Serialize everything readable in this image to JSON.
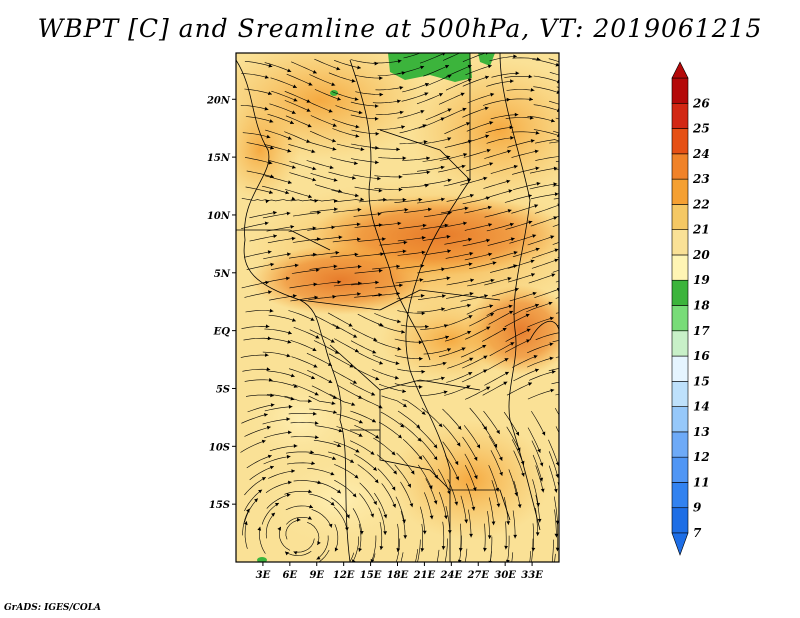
{
  "title": "WBPT [C] and Sreamline at 500hPa, VT: 2019061215",
  "credit": "GrADS: IGES/COLA",
  "map": {
    "lon_range": [
      0,
      36
    ],
    "lat_range": [
      -20,
      24
    ],
    "lat_ticks": [
      "20N",
      "15N",
      "10N",
      "5N",
      "EQ",
      "5S",
      "10S",
      "15S"
    ],
    "lat_tick_values": [
      20,
      15,
      10,
      5,
      0,
      -5,
      -10,
      -15
    ],
    "lon_ticks": [
      "3E",
      "6E",
      "9E",
      "12E",
      "15E",
      "18E",
      "21E",
      "24E",
      "27E",
      "30E",
      "33E"
    ],
    "lon_tick_values": [
      3,
      6,
      9,
      12,
      15,
      18,
      21,
      24,
      27,
      30,
      33
    ]
  },
  "colorbar": {
    "labels": [
      "7",
      "9",
      "11",
      "12",
      "13",
      "14",
      "15",
      "16",
      "17",
      "18",
      "19",
      "20",
      "21",
      "22",
      "23",
      "24",
      "25",
      "26"
    ],
    "colors": [
      "#1e6ee6",
      "#3282f0",
      "#5096f5",
      "#6eaaf7",
      "#96c8fa",
      "#bee1fc",
      "#e6f5ff",
      "#c8f0c8",
      "#78dc78",
      "#3cb43c",
      "#fff5b4",
      "#fae196",
      "#f5c864",
      "#f5a032",
      "#f08228",
      "#e65014",
      "#d22814",
      "#b40a0a"
    ]
  }
}
